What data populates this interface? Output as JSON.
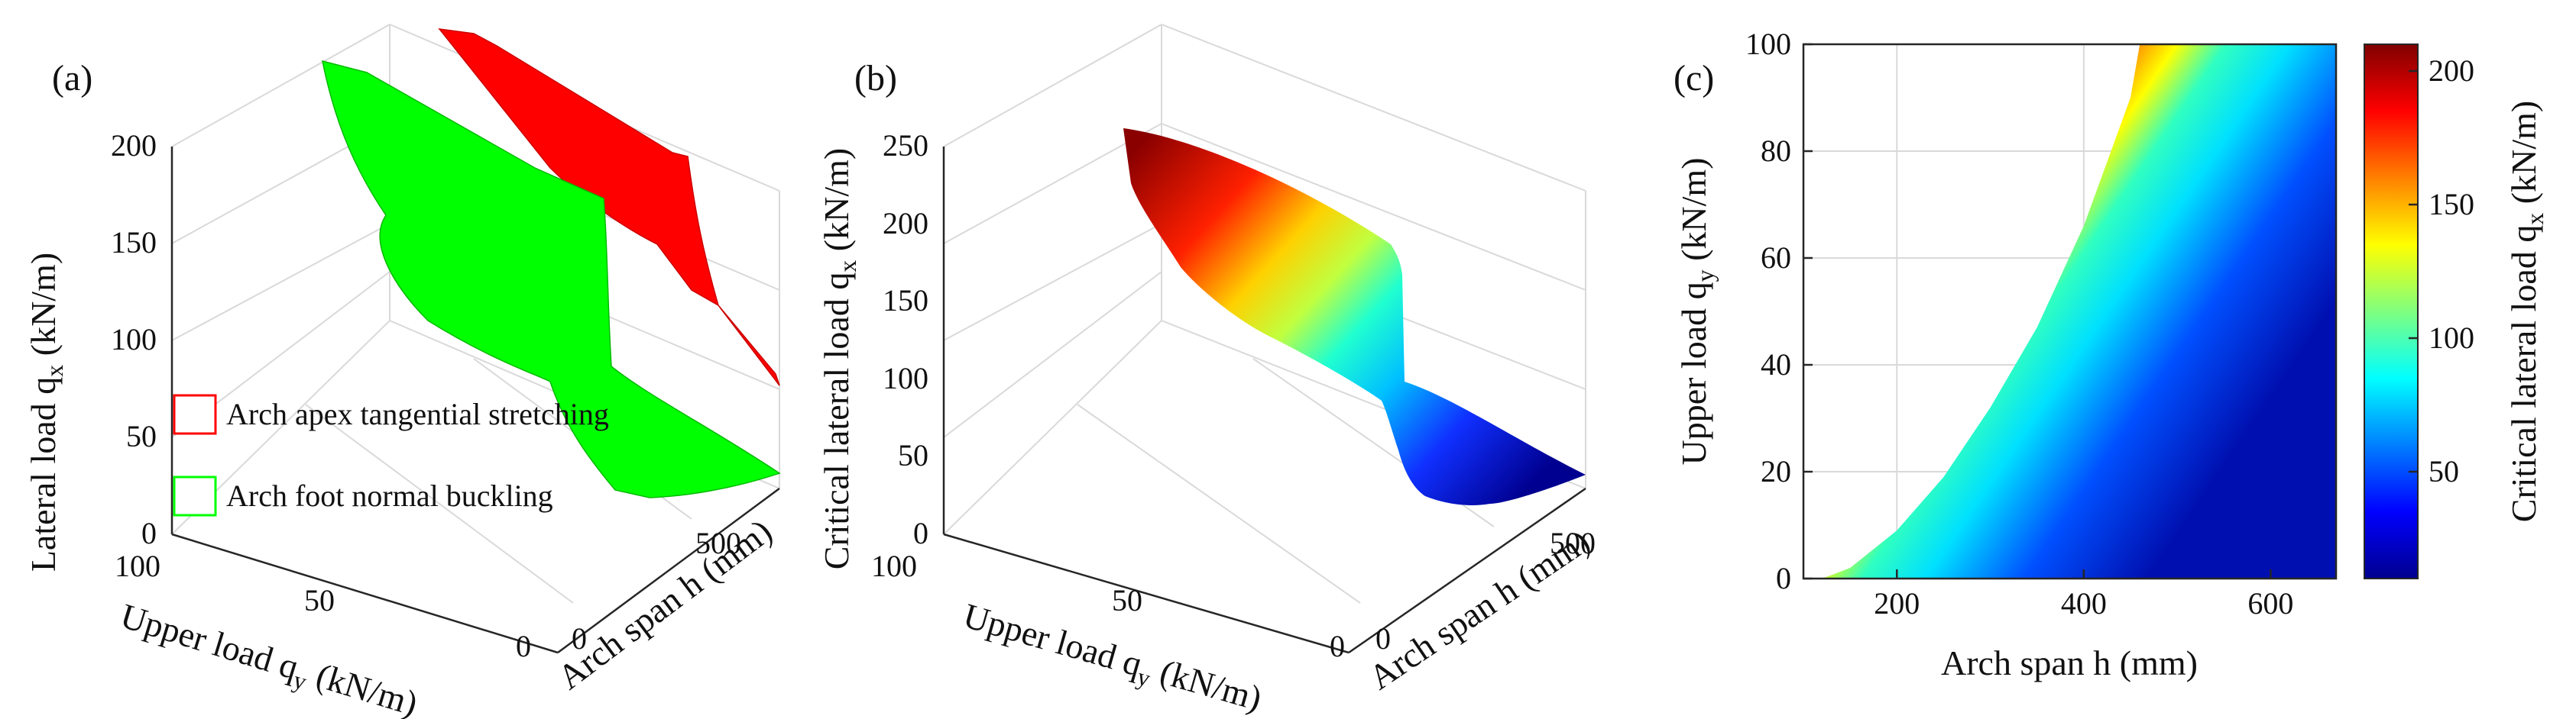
{
  "chart_data": [
    {
      "panel": "(a)",
      "type": "surface3d",
      "title": "",
      "xlabel": {
        "text": "Arch span h (mm)"
      },
      "ylabel": {
        "base": "Upper load q",
        "sub": "y",
        "unit": " (kN/m)"
      },
      "zlabel": {
        "base": "Lateral load q",
        "sub": "x",
        "unit": " (kN/m)"
      },
      "xlim": [
        0,
        700
      ],
      "xticks": [
        "0",
        "500"
      ],
      "ylim": [
        0,
        100
      ],
      "yticks": [
        "100",
        "50",
        "0"
      ],
      "zlim": [
        0,
        200
      ],
      "zticks": [
        "0",
        "50",
        "100",
        "150",
        "200"
      ],
      "legend": {
        "position": "lower-left",
        "entries": [
          {
            "label": "Arch apex tangential stretching",
            "color": "#ff0000"
          },
          {
            "label": "Arch foot normal buckling",
            "color": "#00ff00"
          }
        ]
      },
      "surfaces": [
        {
          "name": "Arch apex tangential stretching",
          "color": "#ff0000"
        },
        {
          "name": "Arch foot normal buckling",
          "color": "#00ff00"
        }
      ]
    },
    {
      "panel": "(b)",
      "type": "surface3d",
      "colormap": "jet",
      "xlabel": {
        "text": "Arch span h (mm)"
      },
      "ylabel": {
        "base": "Upper load q",
        "sub": "y",
        "unit": " (kN/m)"
      },
      "zlabel": {
        "base": "Critical lateral load q",
        "sub": "x",
        "unit": " (kN/m)"
      },
      "xlim": [
        0,
        700
      ],
      "xticks": [
        "0",
        "500"
      ],
      "ylim": [
        0,
        100
      ],
      "yticks": [
        "100",
        "50",
        "0"
      ],
      "zlim": [
        0,
        250
      ],
      "zticks": [
        "0",
        "50",
        "100",
        "150",
        "200",
        "250"
      ],
      "zrange": [
        10,
        255
      ]
    },
    {
      "panel": "(c)",
      "type": "heatmap",
      "colormap": "jet",
      "xlabel": {
        "text": "Arch span h (mm)"
      },
      "ylabel": {
        "base": "Upper load q",
        "sub": "y",
        "unit": " (kN/m)"
      },
      "xlim": [
        100,
        670
      ],
      "xticks": [
        200,
        400,
        600
      ],
      "ylim": [
        0,
        100
      ],
      "yticks": [
        0,
        20,
        40,
        60,
        80,
        100
      ],
      "colorbar": {
        "label": {
          "base": "Critical lateral load q",
          "sub": "x",
          "unit": " (kN/m)"
        },
        "range": [
          10,
          210
        ],
        "ticks": [
          50,
          100,
          150,
          200
        ]
      },
      "boundary_curve": {
        "description": "edge of colored region",
        "x": [
          120,
          150,
          200,
          250,
          300,
          350,
          400,
          450,
          460
        ],
        "y": [
          0,
          2,
          9,
          19,
          32,
          47,
          66,
          90,
          100
        ]
      }
    }
  ]
}
